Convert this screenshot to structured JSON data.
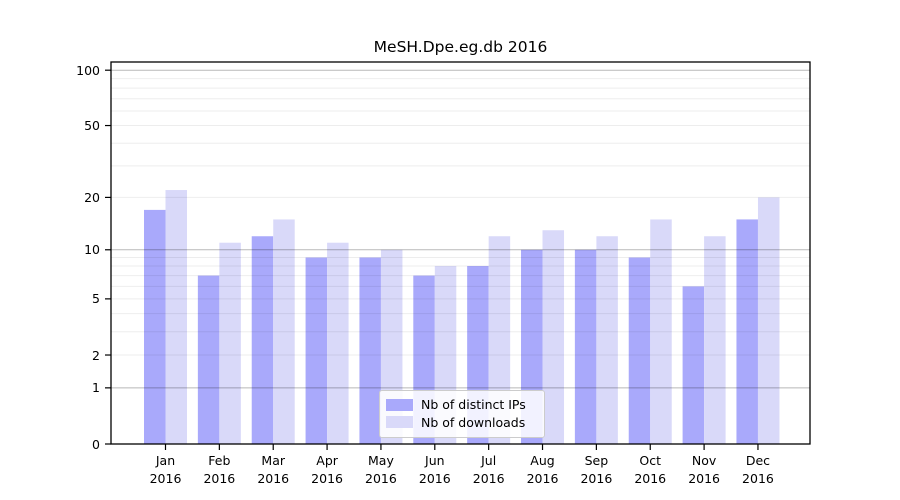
{
  "figure": {
    "background": "#ffffff",
    "axis_color": "#000000",
    "grid_major_color": "rgba(0,0,0,0.28)",
    "grid_minor_color": "rgba(0,0,0,0.07)"
  },
  "chart_data": {
    "type": "bar",
    "title": "MeSH.Dpe.eg.db 2016",
    "categories": [
      "Jan",
      "Feb",
      "Mar",
      "Apr",
      "May",
      "Jun",
      "Jul",
      "Aug",
      "Sep",
      "Oct",
      "Nov",
      "Dec"
    ],
    "category_year": "2016",
    "series": [
      {
        "name": "Nb of distinct IPs",
        "color": "#a9a9fb",
        "values": [
          17,
          7,
          12,
          9,
          9,
          7,
          8,
          10,
          10,
          9,
          6,
          15
        ]
      },
      {
        "name": "Nb of downloads",
        "color": "#d9d9f9",
        "values": [
          22,
          11,
          15,
          11,
          10,
          8,
          12,
          13,
          12,
          15,
          12,
          20
        ]
      }
    ],
    "yscale": "log(v+1)",
    "yticks": [
      0,
      1,
      2,
      5,
      10,
      20,
      50,
      100
    ],
    "ytick_major": [
      1,
      10,
      100
    ],
    "ytick_minor": [
      2,
      3,
      4,
      5,
      6,
      7,
      8,
      9,
      20,
      30,
      40,
      50,
      60,
      70,
      80,
      90
    ],
    "ylim": [
      0,
      110
    ],
    "xlabel": "",
    "ylabel": "",
    "grid": "on",
    "legend_position": "lower-center"
  }
}
